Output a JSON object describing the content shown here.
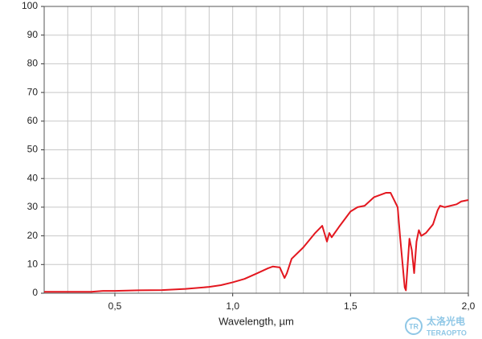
{
  "chart_data": {
    "type": "line",
    "xlabel": "Wavelength, µm",
    "x": [
      0.2,
      0.3,
      0.4,
      0.45,
      0.5,
      0.6,
      0.7,
      0.8,
      0.9,
      0.95,
      1.0,
      1.05,
      1.1,
      1.15,
      1.17,
      1.2,
      1.22,
      1.23,
      1.25,
      1.3,
      1.35,
      1.38,
      1.4,
      1.41,
      1.42,
      1.45,
      1.5,
      1.53,
      1.56,
      1.6,
      1.65,
      1.67,
      1.7,
      1.71,
      1.73,
      1.735,
      1.75,
      1.76,
      1.77,
      1.78,
      1.79,
      1.8,
      1.82,
      1.85,
      1.87,
      1.88,
      1.9,
      1.95,
      1.97,
      2.0
    ],
    "series": [
      {
        "color": "#e3171f",
        "values": [
          0.5,
          0.5,
          0.5,
          0.8,
          0.8,
          1.0,
          1.1,
          1.5,
          2.2,
          2.8,
          3.8,
          5,
          6.8,
          8.7,
          9.3,
          9,
          5.3,
          7,
          12,
          16,
          21,
          23.5,
          18,
          21,
          19.5,
          23,
          28.5,
          30,
          30.5,
          33.5,
          35,
          35,
          30,
          20,
          2,
          1,
          19,
          15,
          7,
          18,
          22,
          20,
          21,
          24,
          29,
          30.5,
          30,
          31,
          32,
          32.5
        ]
      }
    ],
    "xlim": [
      0.2,
      2.0
    ],
    "ylim": [
      0,
      100
    ],
    "xticks": [
      {
        "value": 0.5,
        "label": "0,5"
      },
      {
        "value": 1.0,
        "label": "1,0"
      },
      {
        "value": 1.5,
        "label": "1,5"
      },
      {
        "value": 2.0,
        "label": "2,0"
      }
    ],
    "x_grid": [
      0.3,
      0.4,
      0.5,
      0.6,
      0.7,
      0.8,
      0.9,
      1.0,
      1.1,
      1.2,
      1.3,
      1.4,
      1.5,
      1.6,
      1.7,
      1.8,
      1.9
    ],
    "yticks": [
      0,
      10,
      20,
      30,
      40,
      50,
      60,
      70,
      80,
      90,
      100
    ],
    "grid": true
  },
  "watermark": {
    "icon": "TR",
    "name": "太洛光电",
    "brand": "TERAOPTO"
  }
}
